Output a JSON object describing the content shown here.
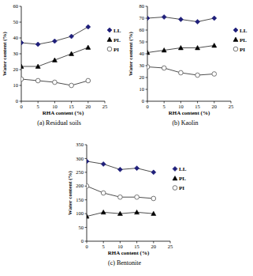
{
  "chart_data": [
    {
      "type": "line",
      "title": "(a) Residual soils",
      "xlabel": "RHA content (%)",
      "ylabel": "Water content (%)",
      "x": [
        0,
        5,
        10,
        15,
        20
      ],
      "xlim": [
        0,
        25
      ],
      "xticks": [
        0,
        5,
        10,
        15,
        20,
        25
      ],
      "ylim": [
        0,
        60
      ],
      "yticks": [
        0,
        10,
        20,
        30,
        40,
        50,
        60
      ],
      "legend": "right",
      "series": [
        {
          "name": "LL",
          "color": "#1f1f7a",
          "marker": "diamond",
          "line_style": "solid",
          "values": [
            37,
            36,
            38,
            41,
            47
          ]
        },
        {
          "name": "PL",
          "color": "#000000",
          "marker": "triangle",
          "line_style": "solid",
          "values": [
            22,
            22,
            26,
            30,
            34
          ]
        },
        {
          "name": "PI",
          "color": "#555555",
          "marker": "circle-open",
          "line_style": "solid",
          "values": [
            14,
            13,
            12,
            10,
            13
          ]
        }
      ]
    },
    {
      "type": "line",
      "title": "(b) Kaolin",
      "xlabel": "RHA content (%)",
      "ylabel": "Water content (%)",
      "x": [
        0,
        5,
        10,
        15,
        20
      ],
      "xlim": [
        0,
        25
      ],
      "xticks": [
        0,
        5,
        10,
        15,
        20,
        25
      ],
      "ylim": [
        0,
        80
      ],
      "yticks": [
        0,
        10,
        20,
        30,
        40,
        50,
        60,
        70,
        80
      ],
      "legend": "right",
      "series": [
        {
          "name": "LL",
          "color": "#1f1f7a",
          "marker": "diamond",
          "line_style": "solid",
          "values": [
            70,
            71,
            69,
            67,
            70
          ]
        },
        {
          "name": "PL",
          "color": "#000000",
          "marker": "triangle",
          "line_style": "solid",
          "values": [
            41,
            43,
            45,
            45,
            47
          ]
        },
        {
          "name": "PI",
          "color": "#555555",
          "marker": "circle-open",
          "line_style": "solid",
          "values": [
            29,
            28,
            24,
            22,
            23
          ]
        }
      ]
    },
    {
      "type": "line",
      "title": "(c) Bentonite",
      "xlabel": "RHA content (%)",
      "ylabel": "Water content (%)",
      "x": [
        0,
        5,
        10,
        15,
        20
      ],
      "xlim": [
        0,
        25
      ],
      "xticks": [
        0,
        5,
        10,
        15,
        20,
        25
      ],
      "ylim": [
        0,
        350
      ],
      "yticks": [
        0,
        50,
        100,
        150,
        200,
        250,
        300,
        350
      ],
      "legend": "right",
      "series": [
        {
          "name": "LL",
          "color": "#1f1f7a",
          "marker": "diamond",
          "line_style": "solid",
          "values": [
            290,
            280,
            260,
            265,
            250
          ]
        },
        {
          "name": "PL",
          "color": "#000000",
          "marker": "triangle",
          "line_style": "solid",
          "values": [
            90,
            105,
            100,
            105,
            100
          ]
        },
        {
          "name": "PI",
          "color": "#555555",
          "marker": "circle-open",
          "line_style": "solid",
          "values": [
            200,
            175,
            160,
            160,
            155
          ]
        }
      ]
    }
  ]
}
